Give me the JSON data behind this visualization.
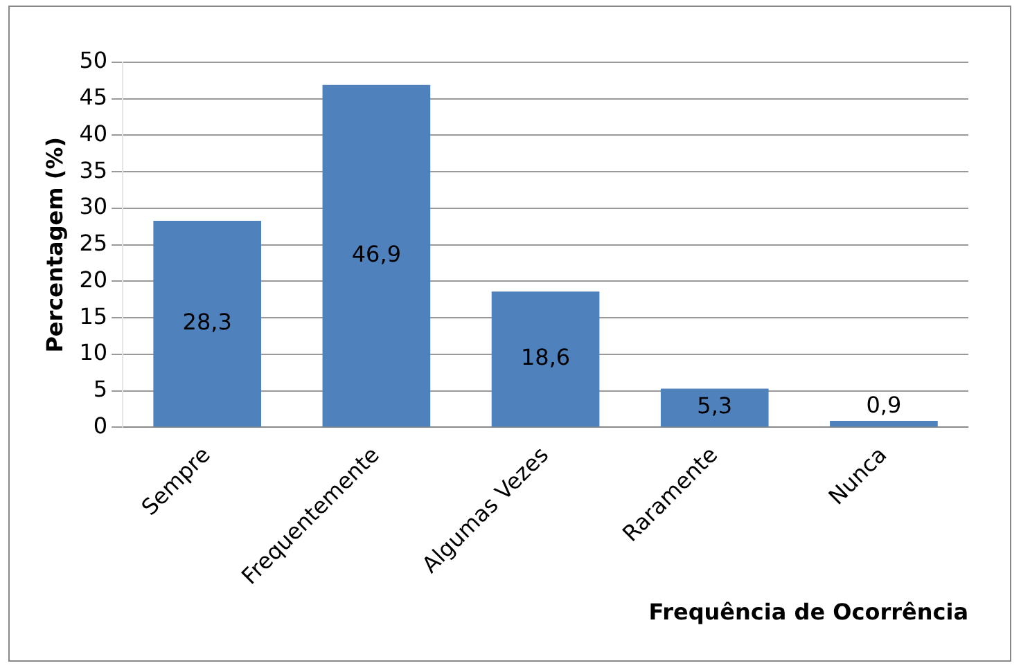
{
  "chart_data": {
    "type": "bar",
    "xlabel": "Frequência de Ocorrência",
    "ylabel": "Percentagem (%)",
    "categories": [
      "Sempre",
      "Frequentemente",
      "Algumas Vezes",
      "Raramente",
      "Nunca"
    ],
    "values": [
      28.3,
      46.9,
      18.6,
      5.3,
      0.9
    ],
    "value_labels": [
      "28,3",
      "46,9",
      "18,6",
      "5,3",
      "0,9"
    ],
    "color": "#4f81bd",
    "ylim": [
      0,
      50
    ],
    "yticks": [
      0,
      5,
      10,
      15,
      20,
      25,
      30,
      35,
      40,
      45,
      50
    ],
    "grid": "y",
    "legend": false
  }
}
